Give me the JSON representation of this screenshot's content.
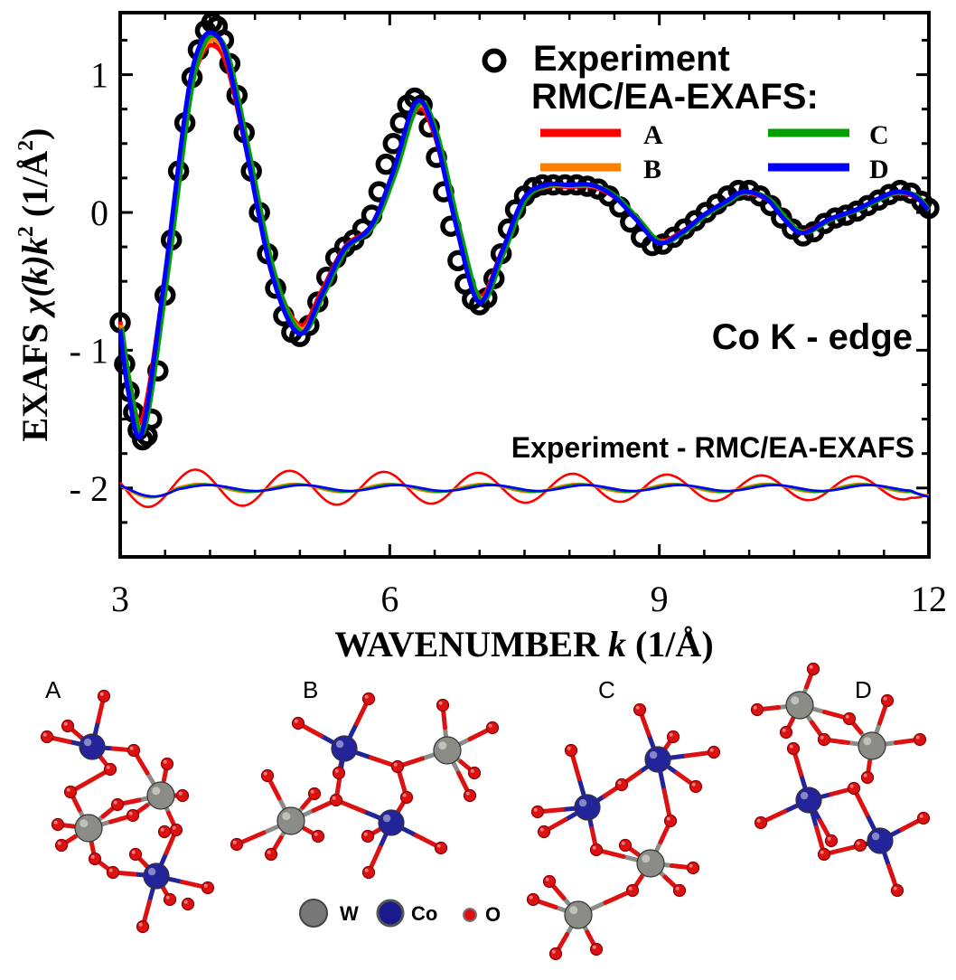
{
  "chart_data": {
    "type": "line",
    "title": "",
    "xlabel_main": "WAVENUMBER ",
    "xlabel_var": "k",
    "xlabel_unit": " (1/Å)",
    "ylabel_prefix": "EXAFS ",
    "ylabel_chi": "χ(k)k",
    "ylabel_exp": "2",
    "ylabel_unit_open": " (1/Å",
    "ylabel_unit_exp": "2",
    "ylabel_unit_close": ")",
    "xlim": [
      3,
      12
    ],
    "ylim": [
      -2.5,
      1.45
    ],
    "x_ticks": [
      3,
      6,
      9,
      12
    ],
    "x_tick_labels": [
      "3",
      "6",
      "9",
      "12"
    ],
    "y_ticks": [
      1,
      0,
      -1,
      -2
    ],
    "y_tick_labels": [
      "1",
      "0",
      "- 1",
      "- 2"
    ],
    "grid": false,
    "legend_placement": "top-right",
    "legend": {
      "experiment": "Experiment",
      "model_header": "RMC/EA-EXAFS:",
      "entries": [
        "A",
        "B",
        "C",
        "D"
      ]
    },
    "annotations": {
      "edge": "Co K - edge",
      "difference": "Experiment - RMC/EA-EXAFS"
    },
    "colors": {
      "experiment": "#000000",
      "A": "#ff0000",
      "B": "#ff7f00",
      "C": "#00a000",
      "D": "#0000ff"
    },
    "model_knots": {
      "k": [
        3.0,
        3.1,
        3.25,
        3.5,
        3.75,
        3.9,
        4.05,
        4.2,
        4.4,
        4.7,
        5.0,
        5.25,
        5.5,
        5.8,
        6.05,
        6.3,
        6.5,
        6.75,
        7.0,
        7.25,
        7.5,
        7.75,
        8.0,
        8.25,
        8.5,
        8.75,
        9.0,
        9.25,
        9.5,
        9.75,
        9.95,
        10.2,
        10.4,
        10.6,
        10.9,
        11.2,
        11.45,
        11.65,
        11.85,
        12.0
      ],
      "chi": [
        -0.85,
        -1.3,
        -1.6,
        -0.5,
        0.8,
        1.22,
        1.3,
        1.12,
        0.5,
        -0.45,
        -0.88,
        -0.6,
        -0.27,
        -0.1,
        0.3,
        0.8,
        0.6,
        -0.1,
        -0.65,
        -0.3,
        0.1,
        0.2,
        0.2,
        0.2,
        0.12,
        -0.05,
        -0.22,
        -0.15,
        -0.02,
        0.08,
        0.15,
        0.1,
        -0.05,
        -0.15,
        -0.05,
        0.02,
        0.1,
        0.15,
        0.12,
        0.02
      ]
    },
    "experiment_points": [
      {
        "k": 3.0,
        "chi": -0.8
      },
      {
        "k": 3.05,
        "chi": -1.1
      },
      {
        "k": 3.1,
        "chi": -1.3
      },
      {
        "k": 3.15,
        "chi": -1.45
      },
      {
        "k": 3.2,
        "chi": -1.58
      },
      {
        "k": 3.25,
        "chi": -1.65
      },
      {
        "k": 3.3,
        "chi": -1.62
      },
      {
        "k": 3.35,
        "chi": -1.5
      },
      {
        "k": 3.42,
        "chi": -1.15
      },
      {
        "k": 3.5,
        "chi": -0.6
      },
      {
        "k": 3.57,
        "chi": -0.2
      },
      {
        "k": 3.65,
        "chi": 0.3
      },
      {
        "k": 3.72,
        "chi": 0.65
      },
      {
        "k": 3.8,
        "chi": 0.98
      },
      {
        "k": 3.87,
        "chi": 1.18
      },
      {
        "k": 3.95,
        "chi": 1.32
      },
      {
        "k": 4.02,
        "chi": 1.38
      },
      {
        "k": 4.08,
        "chi": 1.35
      },
      {
        "k": 4.15,
        "chi": 1.25
      },
      {
        "k": 4.22,
        "chi": 1.08
      },
      {
        "k": 4.3,
        "chi": 0.85
      },
      {
        "k": 4.38,
        "chi": 0.58
      },
      {
        "k": 4.46,
        "chi": 0.3
      },
      {
        "k": 4.55,
        "chi": 0.0
      },
      {
        "k": 4.64,
        "chi": -0.3
      },
      {
        "k": 4.73,
        "chi": -0.55
      },
      {
        "k": 4.82,
        "chi": -0.75
      },
      {
        "k": 4.91,
        "chi": -0.87
      },
      {
        "k": 5.0,
        "chi": -0.9
      },
      {
        "k": 5.1,
        "chi": -0.82
      },
      {
        "k": 5.2,
        "chi": -0.65
      },
      {
        "k": 5.3,
        "chi": -0.47
      },
      {
        "k": 5.4,
        "chi": -0.33
      },
      {
        "k": 5.5,
        "chi": -0.25
      },
      {
        "k": 5.6,
        "chi": -0.2
      },
      {
        "k": 5.7,
        "chi": -0.12
      },
      {
        "k": 5.8,
        "chi": -0.02
      },
      {
        "k": 5.88,
        "chi": 0.15
      },
      {
        "k": 5.96,
        "chi": 0.35
      },
      {
        "k": 6.04,
        "chi": 0.5
      },
      {
        "k": 6.12,
        "chi": 0.65
      },
      {
        "k": 6.2,
        "chi": 0.78
      },
      {
        "k": 6.28,
        "chi": 0.83
      },
      {
        "k": 6.36,
        "chi": 0.78
      },
      {
        "k": 6.44,
        "chi": 0.62
      },
      {
        "k": 6.52,
        "chi": 0.4
      },
      {
        "k": 6.6,
        "chi": 0.15
      },
      {
        "k": 6.68,
        "chi": -0.1
      },
      {
        "k": 6.76,
        "chi": -0.35
      },
      {
        "k": 6.84,
        "chi": -0.52
      },
      {
        "k": 6.92,
        "chi": -0.63
      },
      {
        "k": 7.0,
        "chi": -0.67
      },
      {
        "k": 7.08,
        "chi": -0.62
      },
      {
        "k": 7.16,
        "chi": -0.48
      },
      {
        "k": 7.24,
        "chi": -0.3
      },
      {
        "k": 7.32,
        "chi": -0.12
      },
      {
        "k": 7.4,
        "chi": 0.02
      },
      {
        "k": 7.5,
        "chi": 0.12
      },
      {
        "k": 7.6,
        "chi": 0.18
      },
      {
        "k": 7.7,
        "chi": 0.2
      },
      {
        "k": 7.82,
        "chi": 0.2
      },
      {
        "k": 7.95,
        "chi": 0.2
      },
      {
        "k": 8.08,
        "chi": 0.2
      },
      {
        "k": 8.2,
        "chi": 0.19
      },
      {
        "k": 8.32,
        "chi": 0.17
      },
      {
        "k": 8.44,
        "chi": 0.12
      },
      {
        "k": 8.56,
        "chi": 0.04
      },
      {
        "k": 8.68,
        "chi": -0.07
      },
      {
        "k": 8.8,
        "chi": -0.18
      },
      {
        "k": 8.92,
        "chi": -0.24
      },
      {
        "k": 9.04,
        "chi": -0.23
      },
      {
        "k": 9.16,
        "chi": -0.18
      },
      {
        "k": 9.28,
        "chi": -0.12
      },
      {
        "k": 9.4,
        "chi": -0.06
      },
      {
        "k": 9.52,
        "chi": 0.0
      },
      {
        "k": 9.64,
        "chi": 0.06
      },
      {
        "k": 9.76,
        "chi": 0.12
      },
      {
        "k": 9.88,
        "chi": 0.16
      },
      {
        "k": 10.0,
        "chi": 0.16
      },
      {
        "k": 10.12,
        "chi": 0.12
      },
      {
        "k": 10.24,
        "chi": 0.05
      },
      {
        "k": 10.36,
        "chi": -0.04
      },
      {
        "k": 10.48,
        "chi": -0.12
      },
      {
        "k": 10.6,
        "chi": -0.17
      },
      {
        "k": 10.72,
        "chi": -0.14
      },
      {
        "k": 10.84,
        "chi": -0.08
      },
      {
        "k": 10.96,
        "chi": -0.04
      },
      {
        "k": 11.08,
        "chi": -0.02
      },
      {
        "k": 11.2,
        "chi": 0.01
      },
      {
        "k": 11.32,
        "chi": 0.05
      },
      {
        "k": 11.44,
        "chi": 0.09
      },
      {
        "k": 11.56,
        "chi": 0.13
      },
      {
        "k": 11.68,
        "chi": 0.16
      },
      {
        "k": 11.8,
        "chi": 0.14
      },
      {
        "k": 11.92,
        "chi": 0.08
      },
      {
        "k": 12.0,
        "chi": 0.03
      }
    ],
    "difference": {
      "base": -2.0,
      "A_amplitude": 0.14,
      "A_period": 1.05,
      "BCD_amplitude": 0.03
    }
  },
  "structures": {
    "panel_labels": [
      "A",
      "B",
      "C",
      "D"
    ],
    "atom_legend": [
      {
        "label": "W",
        "color": "#777777"
      },
      {
        "label": "Co",
        "color": "#1a1a8c"
      },
      {
        "label": "O",
        "color": "#dd1111"
      }
    ]
  }
}
